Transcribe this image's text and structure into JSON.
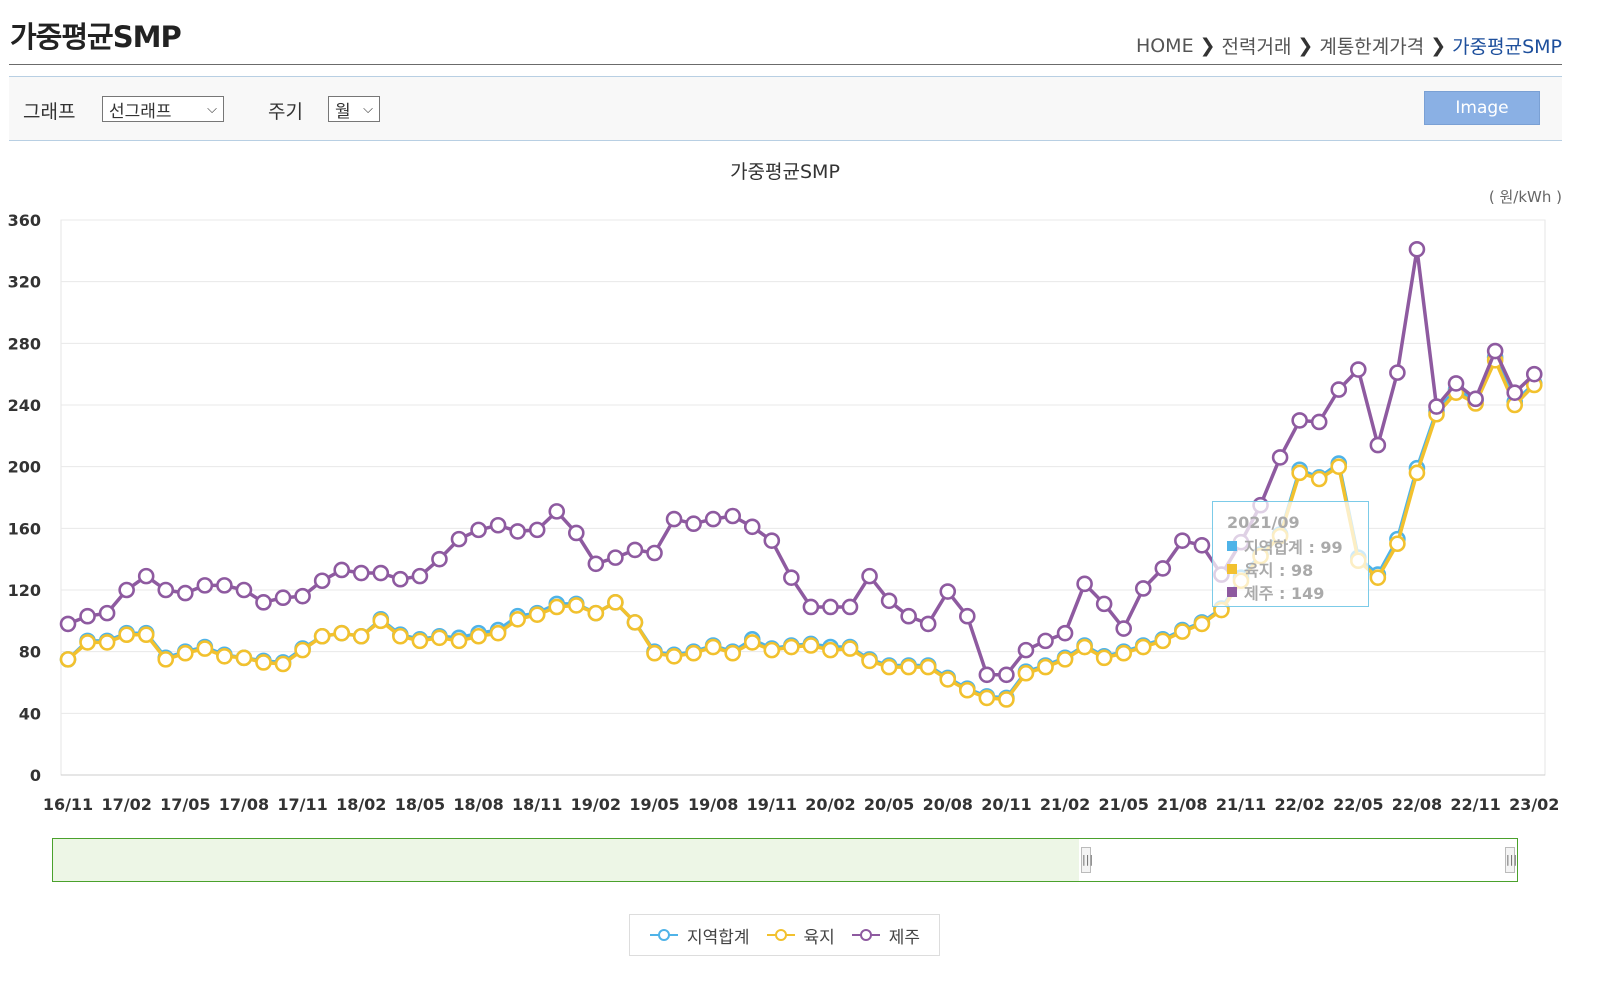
{
  "header": {
    "title": "가중평균SMP",
    "breadcrumb": [
      "HOME",
      "전력거래",
      "계통한계가격",
      "가중평균SMP"
    ]
  },
  "toolbar": {
    "graph_label": "그래프",
    "graph_value": "선그래프",
    "period_label": "주기",
    "period_value": "월",
    "image_button": "Image"
  },
  "tooltip": {
    "date": "2021/09",
    "rows": [
      {
        "label": "지역합계 : 99",
        "color": "#4fb3e8"
      },
      {
        "label": "육지 : 98",
        "color": "#f2c12e"
      },
      {
        "label": "제주 : 149",
        "color": "#8e5aa0"
      }
    ]
  },
  "chart_data": {
    "type": "line",
    "title": "가중평균SMP",
    "unit": "( 원/kWh )",
    "ylim": [
      0,
      360
    ],
    "yticks": [
      0,
      40,
      80,
      120,
      160,
      200,
      240,
      280,
      320,
      360
    ],
    "x_tick_labels": [
      "16/11",
      "17/02",
      "17/05",
      "17/08",
      "17/11",
      "18/02",
      "18/05",
      "18/08",
      "18/11",
      "19/02",
      "19/05",
      "19/08",
      "19/11",
      "20/02",
      "20/05",
      "20/08",
      "20/11",
      "21/02",
      "21/05",
      "21/08",
      "21/11",
      "22/02",
      "22/05",
      "22/08",
      "22/11",
      "23/02"
    ],
    "x_start": "2016/11",
    "x_end": "2023/03",
    "grid": true,
    "series": [
      {
        "name": "지역합계",
        "color": "#4fb3e8",
        "values": [
          75,
          87,
          87,
          92,
          92,
          76,
          80,
          83,
          78,
          76,
          74,
          73,
          82,
          90,
          92,
          90,
          101,
          91,
          88,
          90,
          89,
          92,
          94,
          103,
          105,
          111,
          111,
          105,
          112,
          99,
          80,
          78,
          80,
          84,
          80,
          88,
          82,
          84,
          85,
          83,
          83,
          75,
          71,
          71,
          71,
          63,
          56,
          51,
          50,
          67,
          71,
          76,
          84,
          77,
          80,
          84,
          88,
          94,
          99,
          108,
          128,
          143,
          156,
          198,
          193,
          202,
          141,
          130,
          153,
          199,
          236,
          250,
          243,
          271,
          242,
          254
        ]
      },
      {
        "name": "육지",
        "color": "#f2c12e",
        "values": [
          75,
          86,
          86,
          91,
          91,
          75,
          79,
          82,
          77,
          76,
          73,
          72,
          81,
          90,
          92,
          90,
          100,
          90,
          87,
          89,
          87,
          90,
          92,
          101,
          104,
          109,
          110,
          105,
          112,
          99,
          79,
          77,
          79,
          83,
          79,
          86,
          81,
          83,
          84,
          81,
          82,
          74,
          70,
          70,
          70,
          62,
          55,
          50,
          49,
          66,
          70,
          75,
          83,
          76,
          79,
          83,
          87,
          93,
          98,
          107,
          126,
          142,
          155,
          196,
          192,
          200,
          139,
          128,
          150,
          196,
          234,
          248,
          241,
          269,
          240,
          253
        ]
      },
      {
        "name": "제주",
        "color": "#8e5aa0",
        "values": [
          98,
          103,
          105,
          120,
          129,
          120,
          118,
          123,
          123,
          120,
          112,
          115,
          116,
          126,
          133,
          131,
          131,
          127,
          129,
          140,
          153,
          159,
          162,
          158,
          159,
          171,
          157,
          137,
          141,
          146,
          144,
          166,
          163,
          166,
          168,
          161,
          152,
          128,
          109,
          109,
          109,
          129,
          113,
          103,
          98,
          119,
          103,
          65,
          65,
          81,
          87,
          92,
          124,
          111,
          95,
          121,
          134,
          152,
          149,
          130,
          151,
          175,
          206,
          230,
          229,
          250,
          263,
          214,
          261,
          341,
          239,
          254,
          244,
          275,
          248,
          260
        ]
      }
    ]
  }
}
